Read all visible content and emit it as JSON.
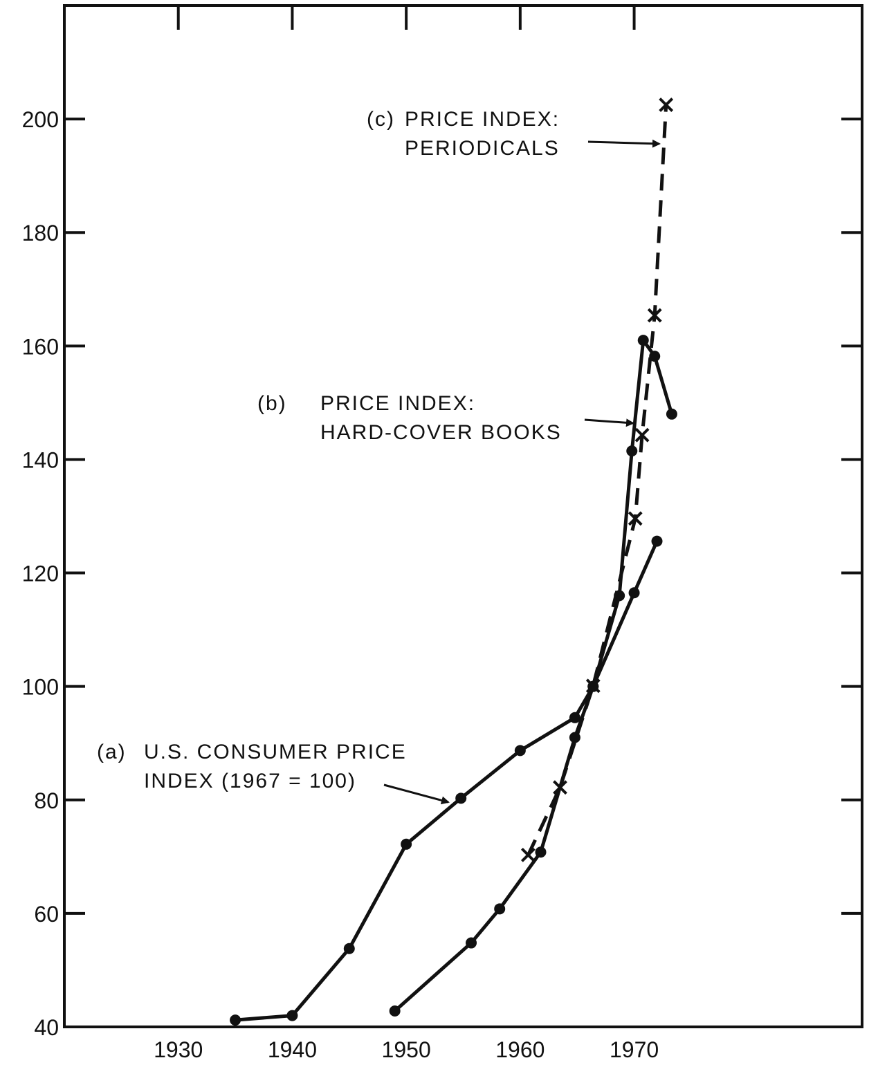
{
  "chart_data": {
    "type": "line",
    "xlim": [
      1920,
      1990
    ],
    "xticks": [
      1930,
      1940,
      1950,
      1960,
      1970
    ],
    "ylim": [
      40,
      220
    ],
    "yticks": [
      40,
      60,
      80,
      100,
      120,
      140,
      160,
      180,
      200
    ],
    "series": [
      {
        "label": "(a)",
        "name": [
          "U.S. CONSUMER PRICE",
          "INDEX (1967 = 100)"
        ],
        "color": "#111111",
        "marker": "dot",
        "dashed": false,
        "x": [
          1935,
          1940,
          1945,
          1950,
          1954.8,
          1960,
          1964.8,
          1966.4,
          1970,
          1972
        ],
        "values": [
          41.2,
          42,
          53.8,
          72.2,
          80.3,
          88.7,
          94.5,
          100,
          116.5,
          125.6
        ]
      },
      {
        "label": "(b)",
        "name": [
          "PRICE INDEX:",
          "HARD-COVER BOOKS"
        ],
        "color": "#111111",
        "marker": "dot",
        "dashed": false,
        "x": [
          1949,
          1955.7,
          1958.2,
          1961.8,
          1964.8,
          1966.4,
          1968.7,
          1969.8,
          1970.8,
          1971.8,
          1973.3
        ],
        "values": [
          42.8,
          54.8,
          60.8,
          70.8,
          91,
          100,
          116,
          141.5,
          161,
          158.2,
          148
        ]
      },
      {
        "label": "(c)",
        "name": [
          "PRICE INDEX:",
          "PERIODICALS"
        ],
        "color": "#111111",
        "marker": "x",
        "dashed": true,
        "x": [
          1960.7,
          1963.5,
          1966.4,
          1970.1,
          1970.7,
          1971.8,
          1972.8
        ],
        "values": [
          70.3,
          82.2,
          100.1,
          129.6,
          144.3,
          165.4,
          202.5
        ]
      }
    ]
  }
}
